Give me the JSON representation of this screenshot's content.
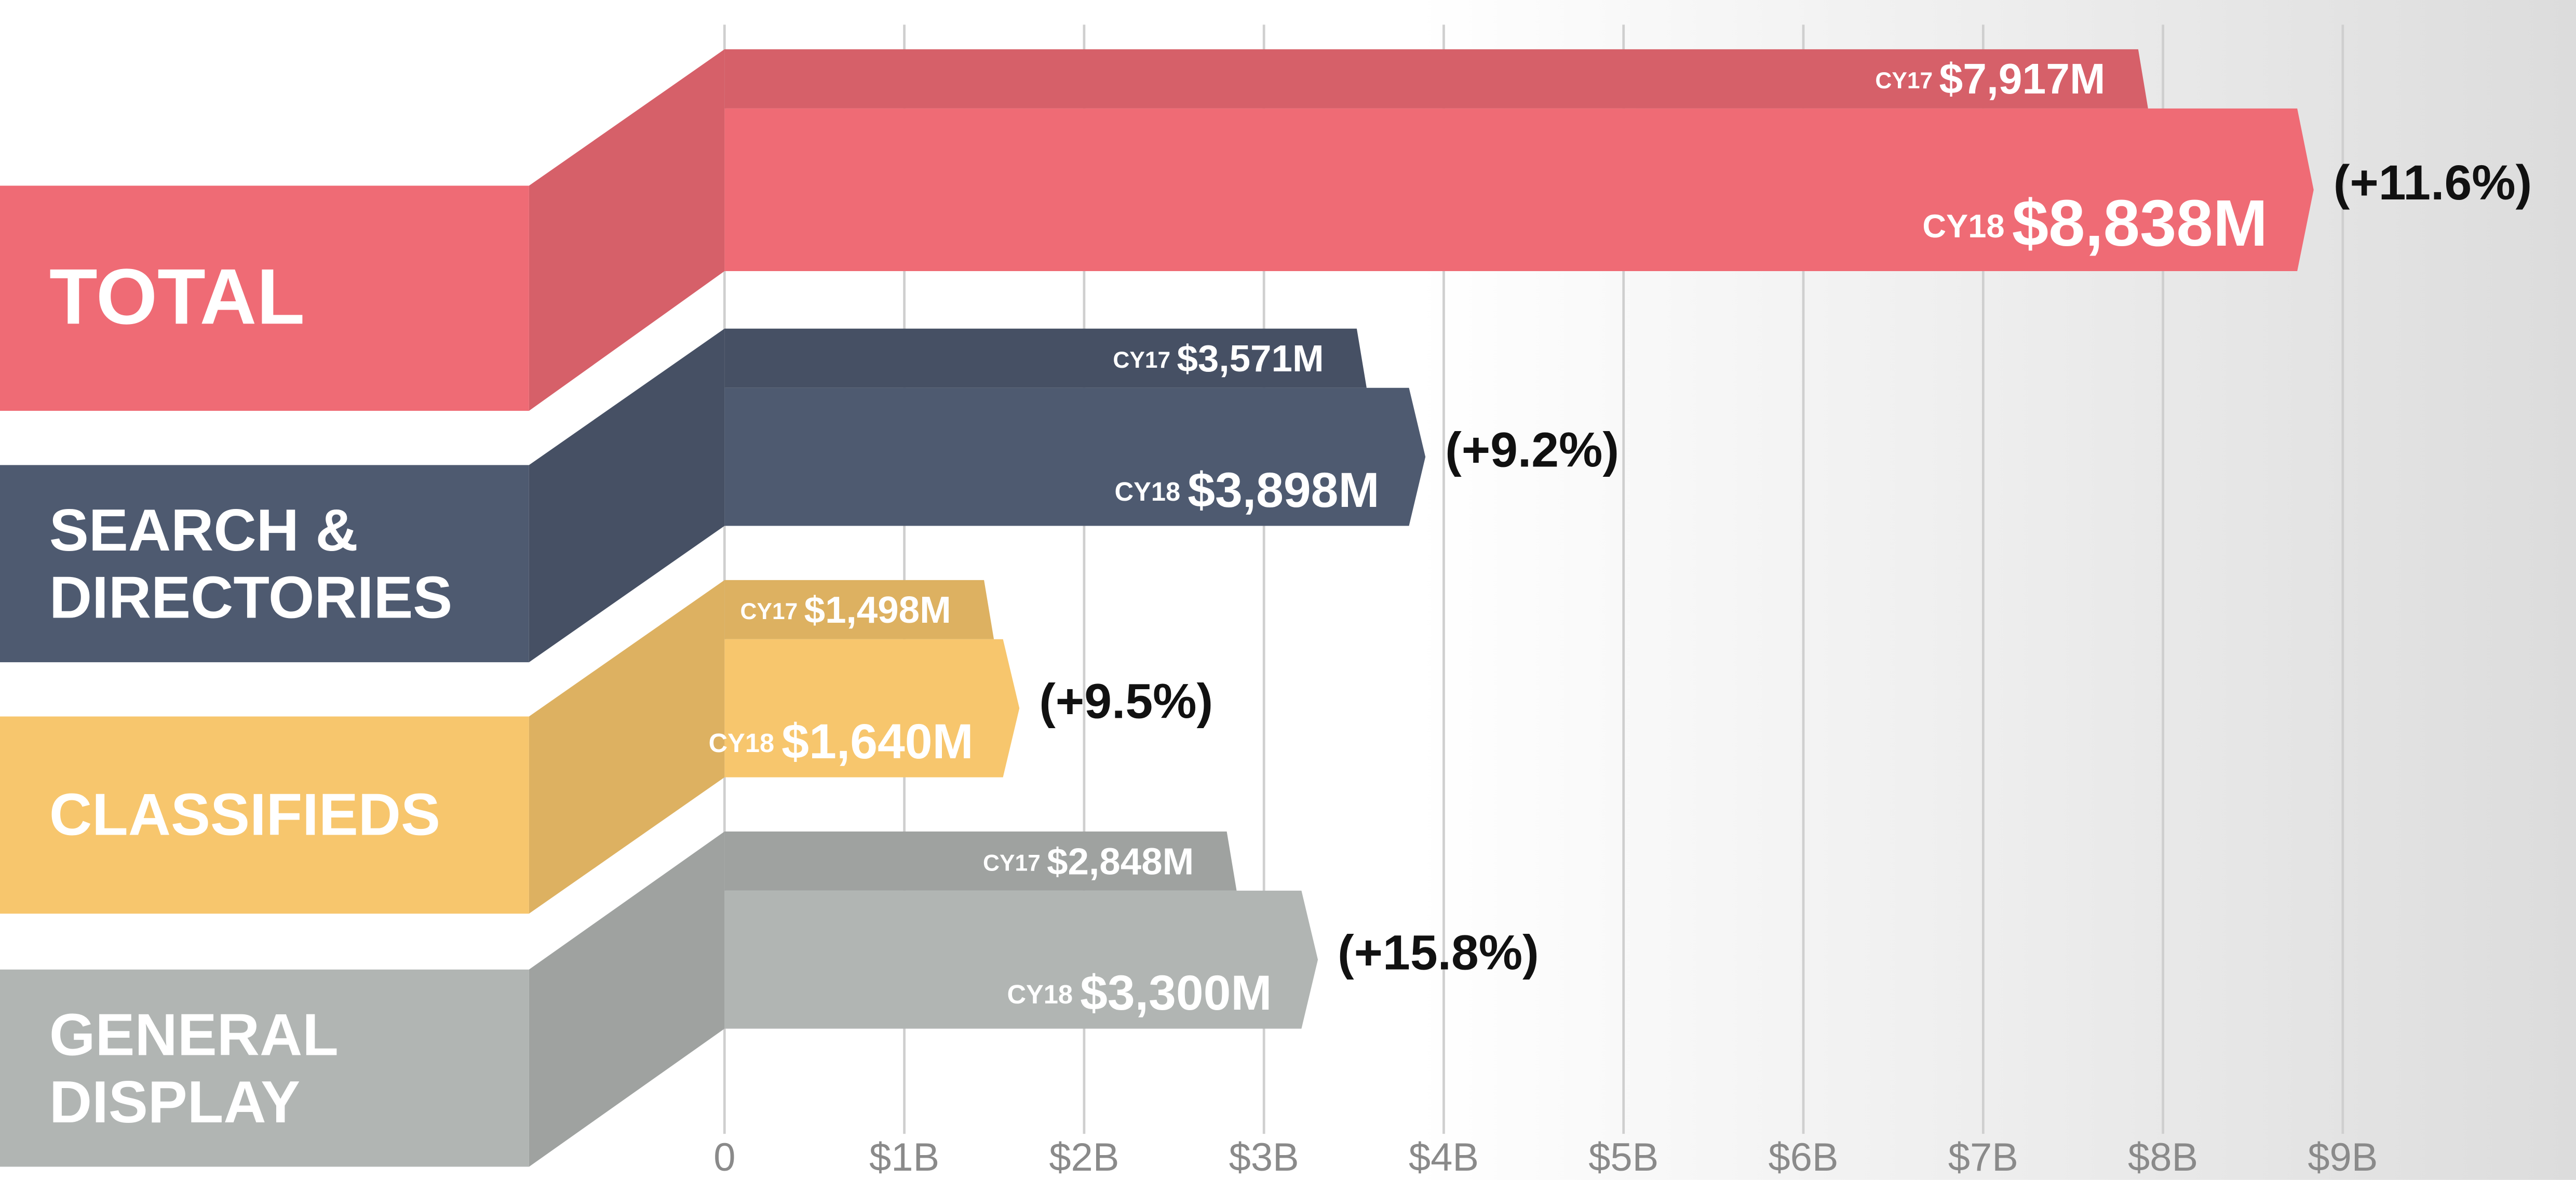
{
  "chart_data": {
    "type": "bar",
    "orientation": "horizontal",
    "categories": [
      "TOTAL",
      "SEARCH &\nDIRECTORIES",
      "CLASSIFIEDS",
      "GENERAL\nDISPLAY"
    ],
    "colors": [
      "#ef6b75",
      "#4e5a70",
      "#f7c66d",
      "#b1b5b3"
    ],
    "series": [
      {
        "name": "CY17",
        "values": [
          7.917,
          3.571,
          1.498,
          2.848
        ],
        "value_labels": [
          "$7,917M",
          "$3,571M",
          "$1,498M",
          "$2,848M"
        ]
      },
      {
        "name": "CY18",
        "values": [
          8.838,
          3.898,
          1.64,
          3.3
        ],
        "value_labels": [
          "$8,838M",
          "$3,898M",
          "$1,640M",
          "$3,300M"
        ]
      }
    ],
    "annotations": [
      "(+11.6%)",
      "(+9.2%)",
      "(+9.5%)",
      "(+15.8%)"
    ],
    "xlim": [
      0,
      10.3
    ],
    "xticks": [
      0,
      {
        "value": 1,
        "label": "$1B"
      },
      {
        "value": 2,
        "label": "$2B"
      },
      {
        "value": 3,
        "label": "$3B"
      },
      {
        "value": 4,
        "label": "$4B"
      },
      {
        "value": 5,
        "label": "$5B"
      },
      {
        "value": 6,
        "label": "$6B"
      },
      {
        "value": 7,
        "label": "$7B"
      },
      {
        "value": 8,
        "label": "$8B"
      },
      {
        "value": 9,
        "label": "$9B"
      }
    ],
    "grid": true
  }
}
